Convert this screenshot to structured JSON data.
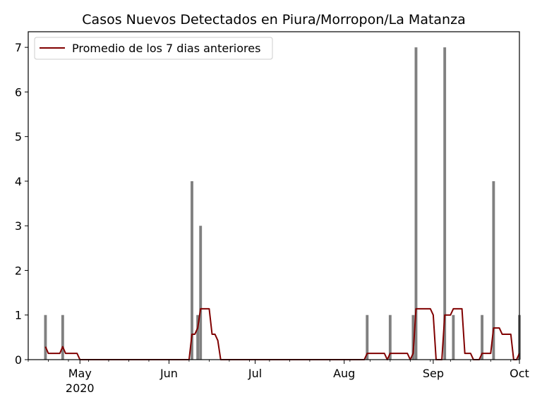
{
  "chart_data": {
    "type": "bar",
    "title": "Casos Nuevos Detectados en Piura/Morropon/La Matanza",
    "xlabel": "",
    "ylabel": "",
    "x_range": [
      "2020-04-13",
      "2020-10-01"
    ],
    "ylim": [
      0,
      7.35
    ],
    "yticks": [
      0,
      1,
      2,
      3,
      4,
      5,
      6,
      7
    ],
    "xticks": [
      {
        "date": "2020-05-01",
        "label": "May",
        "sublabel": "2020"
      },
      {
        "date": "2020-06-01",
        "label": "Jun",
        "sublabel": ""
      },
      {
        "date": "2020-07-01",
        "label": "Jul",
        "sublabel": ""
      },
      {
        "date": "2020-08-01",
        "label": "Aug",
        "sublabel": ""
      },
      {
        "date": "2020-09-01",
        "label": "Sep",
        "sublabel": ""
      },
      {
        "date": "2020-10-01",
        "label": "Oct",
        "sublabel": ""
      }
    ],
    "grid": false,
    "legend_position": "top-left",
    "bar_color": "#808080",
    "line_color": "#800000",
    "bars": [
      {
        "date": "2020-04-19",
        "value": 1
      },
      {
        "date": "2020-04-25",
        "value": 1
      },
      {
        "date": "2020-06-09",
        "value": 4
      },
      {
        "date": "2020-06-11",
        "value": 1
      },
      {
        "date": "2020-06-12",
        "value": 3
      },
      {
        "date": "2020-08-09",
        "value": 1
      },
      {
        "date": "2020-08-17",
        "value": 1
      },
      {
        "date": "2020-08-25",
        "value": 1
      },
      {
        "date": "2020-08-26",
        "value": 7
      },
      {
        "date": "2020-09-05",
        "value": 7
      },
      {
        "date": "2020-09-08",
        "value": 1
      },
      {
        "date": "2020-09-18",
        "value": 1
      },
      {
        "date": "2020-09-22",
        "value": 4
      },
      {
        "date": "2020-10-01",
        "value": 1
      }
    ],
    "series": [
      {
        "name": "Promedio de los 7 dias anteriores",
        "type": "line",
        "points": [
          [
            "2020-04-19",
            0.29
          ],
          [
            "2020-04-20",
            0.14
          ],
          [
            "2020-04-24",
            0.14
          ],
          [
            "2020-04-25",
            0.29
          ],
          [
            "2020-04-26",
            0.14
          ],
          [
            "2020-04-30",
            0.14
          ],
          [
            "2020-05-01",
            0
          ],
          [
            "2020-06-08",
            0
          ],
          [
            "2020-06-09",
            0.57
          ],
          [
            "2020-06-10",
            0.57
          ],
          [
            "2020-06-11",
            0.71
          ],
          [
            "2020-06-12",
            1.14
          ],
          [
            "2020-06-15",
            1.14
          ],
          [
            "2020-06-16",
            0.57
          ],
          [
            "2020-06-17",
            0.57
          ],
          [
            "2020-06-18",
            0.43
          ],
          [
            "2020-06-19",
            0
          ],
          [
            "2020-08-08",
            0
          ],
          [
            "2020-08-09",
            0.14
          ],
          [
            "2020-08-15",
            0.14
          ],
          [
            "2020-08-16",
            0
          ],
          [
            "2020-08-17",
            0.14
          ],
          [
            "2020-08-23",
            0.14
          ],
          [
            "2020-08-24",
            0
          ],
          [
            "2020-08-25",
            0.14
          ],
          [
            "2020-08-26",
            1.14
          ],
          [
            "2020-08-31",
            1.14
          ],
          [
            "2020-09-01",
            1.0
          ],
          [
            "2020-09-02",
            0
          ],
          [
            "2020-09-04",
            0
          ],
          [
            "2020-09-05",
            1.0
          ],
          [
            "2020-09-07",
            1.0
          ],
          [
            "2020-09-08",
            1.14
          ],
          [
            "2020-09-11",
            1.14
          ],
          [
            "2020-09-12",
            0.14
          ],
          [
            "2020-09-14",
            0.14
          ],
          [
            "2020-09-15",
            0
          ],
          [
            "2020-09-17",
            0
          ],
          [
            "2020-09-18",
            0.14
          ],
          [
            "2020-09-21",
            0.14
          ],
          [
            "2020-09-22",
            0.71
          ],
          [
            "2020-09-24",
            0.71
          ],
          [
            "2020-09-25",
            0.57
          ],
          [
            "2020-09-28",
            0.57
          ],
          [
            "2020-09-29",
            0
          ],
          [
            "2020-09-30",
            0
          ],
          [
            "2020-10-01",
            0.14
          ]
        ]
      }
    ]
  }
}
